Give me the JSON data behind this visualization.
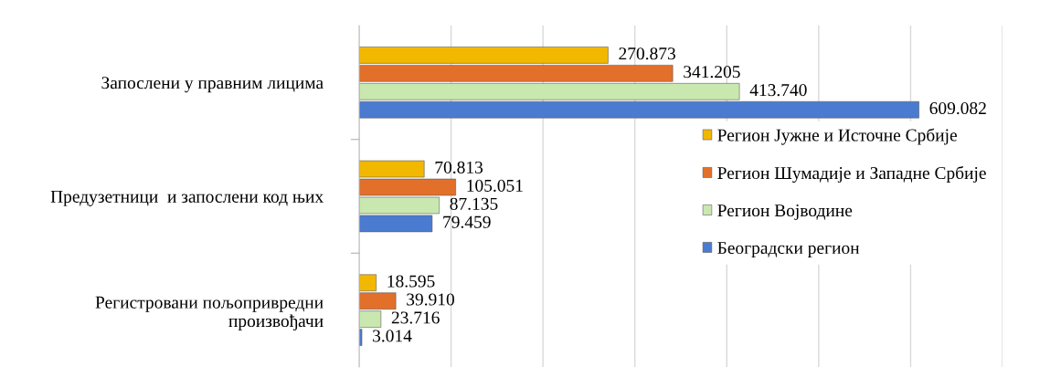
{
  "chart_data": {
    "type": "bar",
    "orientation": "horizontal",
    "categories": [
      "Запослени у правним лицима",
      "Предузетници  и запослени код њих",
      "Регистровани пољопривредни произвођачи"
    ],
    "series": [
      {
        "name": "Регион Јужне и Источне Србије",
        "color": "#f2b800",
        "values": [
          270873,
          70813,
          18595
        ],
        "value_labels": [
          "270.873",
          "70.813",
          "18.595"
        ]
      },
      {
        "name": "Регион Шумадије и Западне Србије",
        "color": "#e2702a",
        "values": [
          341205,
          105051,
          39910
        ],
        "value_labels": [
          "341.205",
          "105.051",
          "39.910"
        ]
      },
      {
        "name": "Регион Војводине",
        "color": "#c9e8b0",
        "values": [
          413740,
          87135,
          23716
        ],
        "value_labels": [
          "413.740",
          "87.135",
          "23.716"
        ]
      },
      {
        "name": "Београдски регион",
        "color": "#4a7bd0",
        "values": [
          609082,
          79459,
          3014
        ],
        "value_labels": [
          "609.082",
          "79.459",
          "3.014"
        ]
      }
    ],
    "xlim": [
      0,
      700000
    ],
    "xticks": [
      {
        "value": 0,
        "label": null
      },
      {
        "value": 100000,
        "label": null
      },
      {
        "value": 200000,
        "label": null
      },
      {
        "value": 300000,
        "label": null
      },
      {
        "value": 400000,
        "label": null
      },
      {
        "value": 500000,
        "label": null
      },
      {
        "value": 600000,
        "label": null
      },
      {
        "value": 700000,
        "label": null
      }
    ],
    "grid": "x",
    "legend": "right",
    "tick_labels": "y"
  }
}
